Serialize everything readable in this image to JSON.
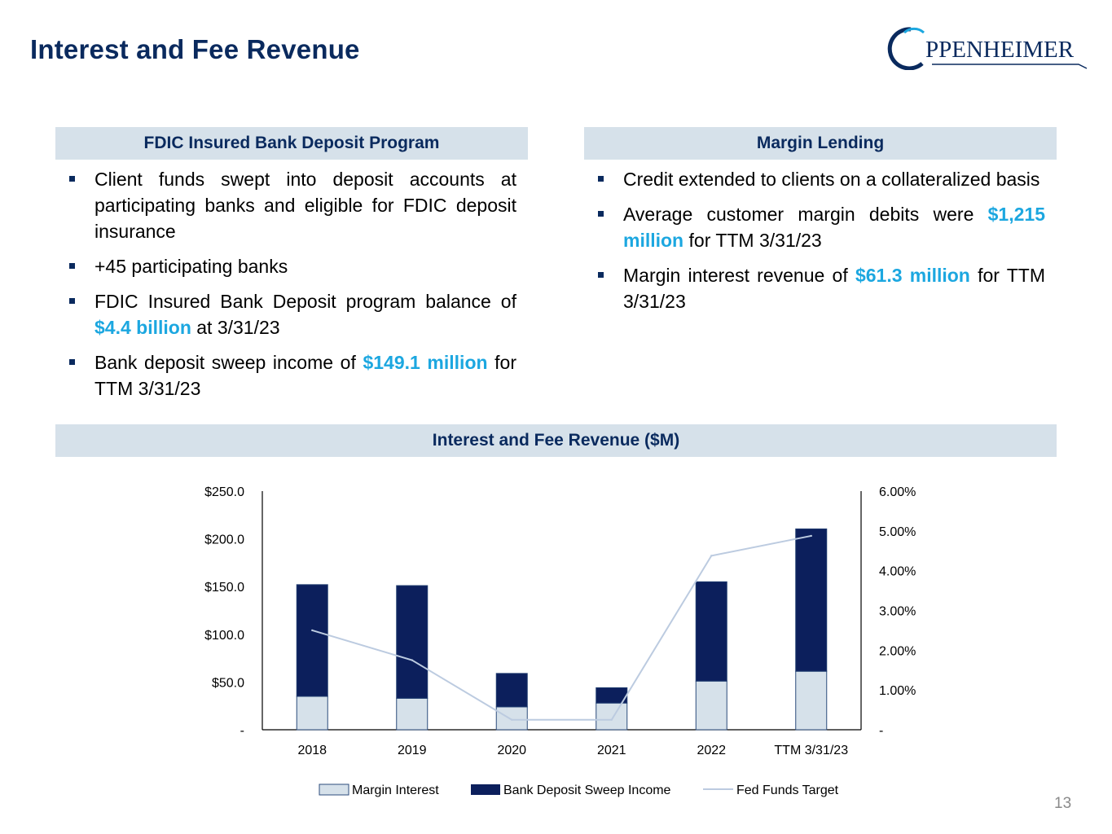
{
  "slide": {
    "title": "Interest and Fee Revenue",
    "logo_text": "PPENHEIMER",
    "page_number": "13"
  },
  "left_panel": {
    "header": "FDIC Insured Bank Deposit Program",
    "bullets": [
      {
        "parts": [
          {
            "t": "Client funds swept into deposit accounts at participating banks and eligible for FDIC deposit insurance",
            "hl": false
          }
        ]
      },
      {
        "parts": [
          {
            "t": "+45 participating banks",
            "hl": false
          }
        ]
      },
      {
        "parts": [
          {
            "t": "FDIC Insured Bank Deposit program balance of ",
            "hl": false
          },
          {
            "t": "$4.4 billion",
            "hl": true
          },
          {
            "t": " at 3/31/23",
            "hl": false
          }
        ]
      },
      {
        "parts": [
          {
            "t": "Bank deposit sweep income of ",
            "hl": false
          },
          {
            "t": "$149.1 million",
            "hl": true
          },
          {
            "t": " for TTM 3/31/23",
            "hl": false
          }
        ]
      }
    ]
  },
  "right_panel": {
    "header": "Margin Lending",
    "bullets": [
      {
        "parts": [
          {
            "t": "Credit extended to clients on a collateralized basis",
            "hl": false
          }
        ]
      },
      {
        "parts": [
          {
            "t": "Average customer margin debits were ",
            "hl": false
          },
          {
            "t": "$1,215 million",
            "hl": true
          },
          {
            "t": " for TTM 3/31/23",
            "hl": false
          }
        ]
      },
      {
        "parts": [
          {
            "t": "Margin interest revenue of ",
            "hl": false
          },
          {
            "t": "$61.3 million",
            "hl": true
          },
          {
            "t": " for TTM 3/31/23",
            "hl": false
          }
        ]
      }
    ]
  },
  "chart_header": "Interest and Fee Revenue ($M)",
  "colors": {
    "navy": "#0a2a5e",
    "bar_dark": "#0c1f5c",
    "bar_light": "#d6e1ea",
    "line": "#bccbe0",
    "highlight": "#1ca7e0",
    "header_bg": "#d6e1ea"
  },
  "chart_data": {
    "type": "bar",
    "stacked": true,
    "categories": [
      "2018",
      "2019",
      "2020",
      "2021",
      "2022",
      "TTM 3/31/23"
    ],
    "series": [
      {
        "name": "Margin Interest",
        "axis": "left",
        "values": [
          35,
          33,
          24,
          28,
          51,
          61.3
        ]
      },
      {
        "name": "Bank Deposit Sweep Income",
        "axis": "left",
        "values": [
          117,
          118,
          35,
          16,
          104,
          149.1
        ]
      },
      {
        "name": "Fed Funds Target",
        "type": "line",
        "axis": "right",
        "values": [
          2.5,
          1.75,
          0.25,
          0.25,
          4.375,
          4.875
        ]
      }
    ],
    "y_left": {
      "min": 0,
      "max": 250,
      "ticks": [
        "-",
        "$50.0",
        "$100.0",
        "$150.0",
        "$200.0",
        "$250.0"
      ]
    },
    "y_right": {
      "min": 0,
      "max": 6,
      "ticks": [
        "-",
        "1.00%",
        "2.00%",
        "3.00%",
        "4.00%",
        "5.00%",
        "6.00%"
      ]
    },
    "legend_position": "bottom"
  }
}
